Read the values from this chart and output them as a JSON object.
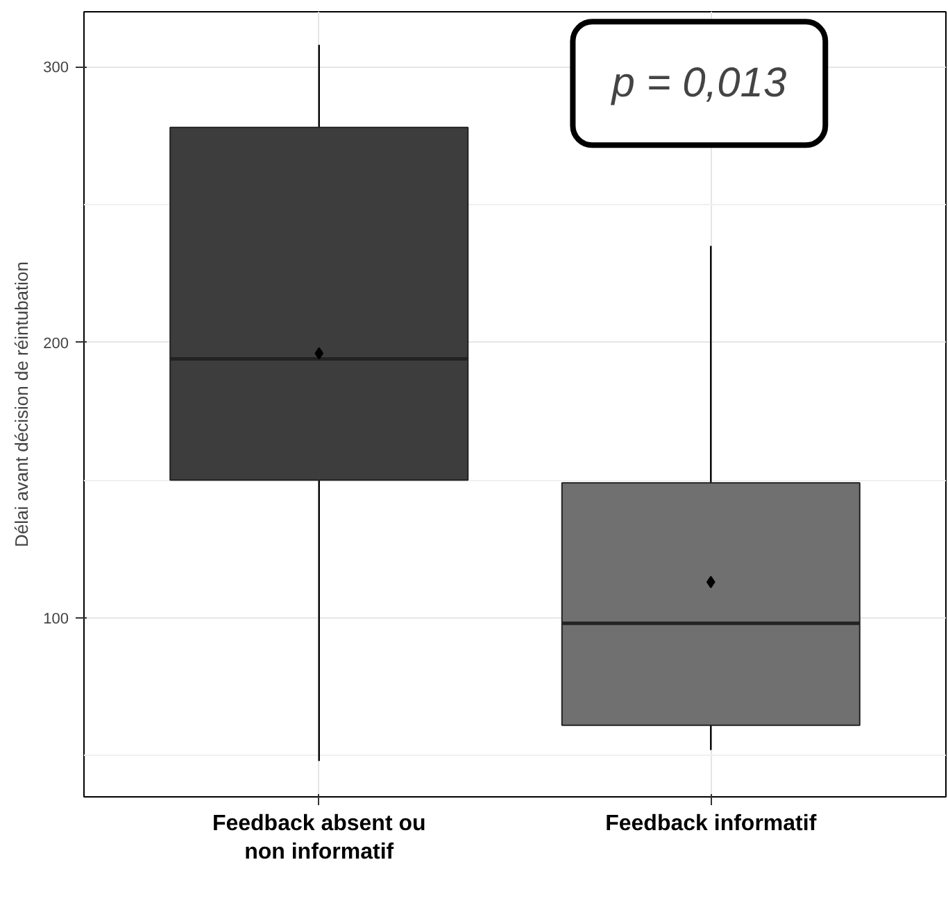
{
  "chart_data": {
    "type": "box",
    "ylabel": "Délai avant décision de réintubation",
    "categories": [
      "Feedback absent ou non informatif",
      "Feedback informatif"
    ],
    "boxes": [
      {
        "low": 48,
        "q1": 150,
        "median": 194,
        "q3": 278,
        "high": 308,
        "mean": 196
      },
      {
        "low": 52,
        "q1": 61,
        "median": 98,
        "q3": 149,
        "high": 235,
        "mean": 113
      }
    ],
    "colors": [
      "#3d3d3d",
      "#707070"
    ],
    "ylim": [
      35,
      320
    ],
    "yticks": [
      100,
      200,
      300
    ],
    "grid": true,
    "annotations": [
      "p = 0,013"
    ]
  }
}
